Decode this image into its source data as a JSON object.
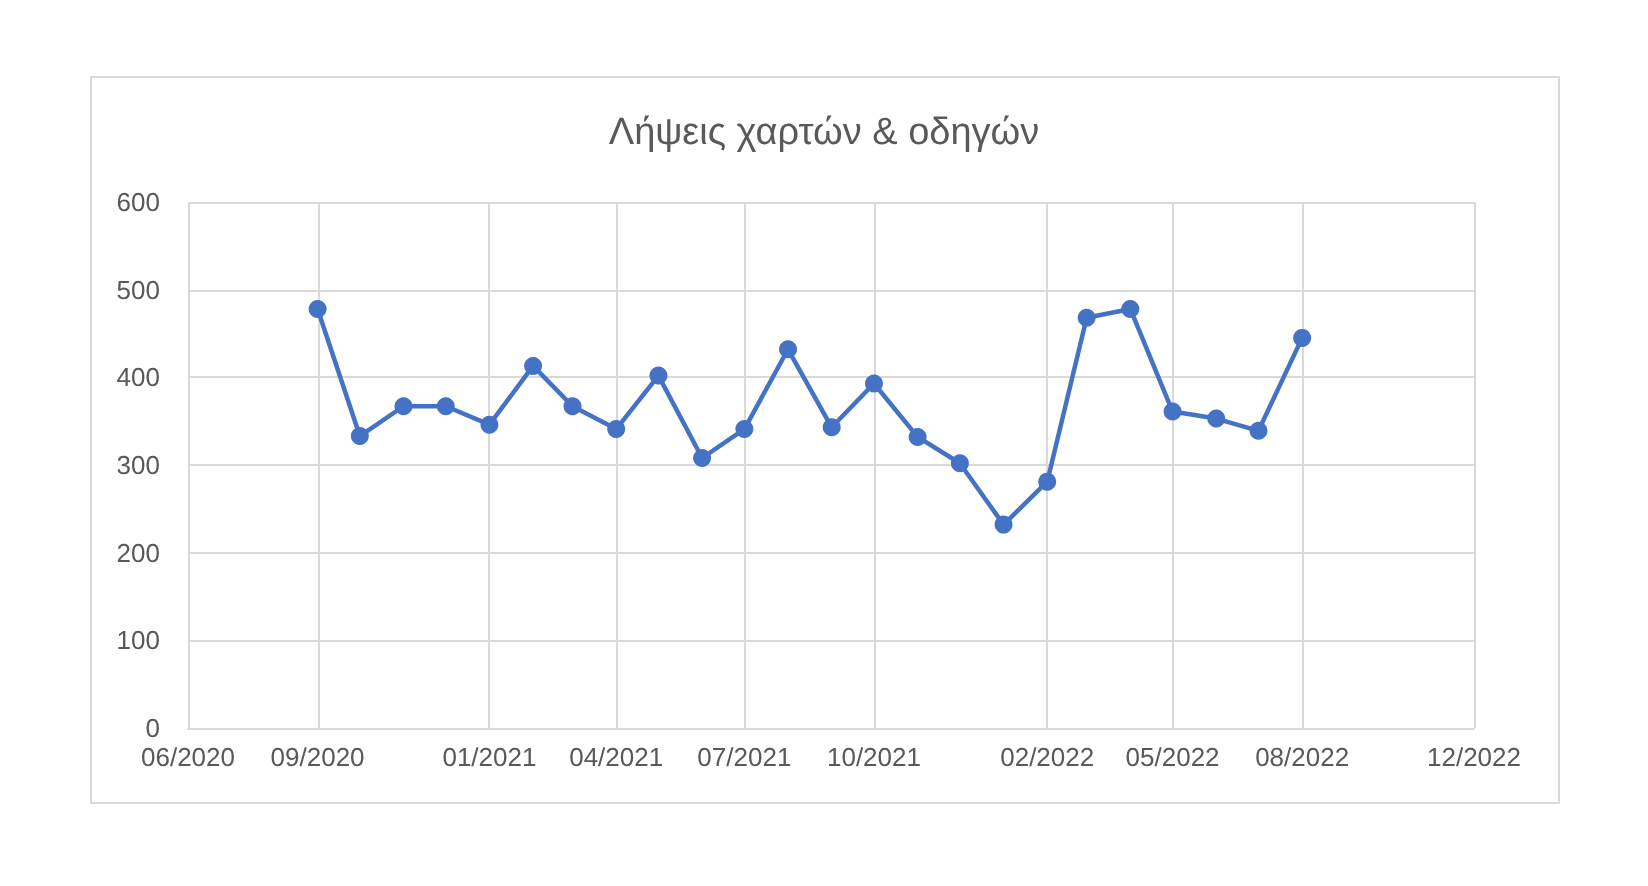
{
  "chart_data": {
    "type": "line",
    "title": "Λήψεις χαρτών & οδηγών",
    "x": [
      "2020-09",
      "2020-10",
      "2020-11",
      "2020-12",
      "2021-01",
      "2021-02",
      "2021-03",
      "2021-04",
      "2021-05",
      "2021-06",
      "2021-07",
      "2021-08",
      "2021-09",
      "2021-10",
      "2021-11",
      "2021-12",
      "2022-01",
      "2022-02",
      "2022-03",
      "2022-04",
      "2022-05",
      "2022-06",
      "2022-07",
      "2022-08"
    ],
    "series": [
      {
        "color": "#4472c4",
        "values": [
          478,
          333,
          367,
          367,
          346,
          413,
          367,
          341,
          402,
          308,
          341,
          432,
          343,
          393,
          332,
          302,
          232,
          281,
          468,
          478,
          361,
          353,
          339,
          445
        ]
      }
    ],
    "xlim": [
      "2020-06",
      "2022-12"
    ],
    "xticks": [
      {
        "value": "2020-06",
        "label": "06/2020"
      },
      {
        "value": "2020-09",
        "label": "09/2020"
      },
      {
        "value": "2021-01",
        "label": "01/2021"
      },
      {
        "value": "2021-04",
        "label": "04/2021"
      },
      {
        "value": "2021-07",
        "label": "07/2021"
      },
      {
        "value": "2021-10",
        "label": "10/2021"
      },
      {
        "value": "2022-02",
        "label": "02/2022"
      },
      {
        "value": "2022-05",
        "label": "05/2022"
      },
      {
        "value": "2022-08",
        "label": "08/2022"
      },
      {
        "value": "2022-12",
        "label": "12/2022"
      }
    ],
    "ylim": [
      0,
      600
    ],
    "yticks": [
      0,
      100,
      200,
      300,
      400,
      500,
      600
    ],
    "grid": true,
    "marker": "circle",
    "line_style": "solid"
  }
}
